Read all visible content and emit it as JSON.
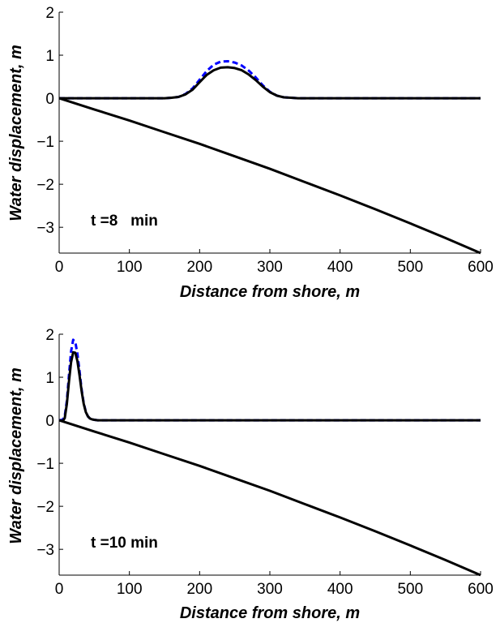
{
  "chart_data": [
    {
      "type": "line",
      "title": "",
      "xlabel": "Distance from shore, m",
      "ylabel": "Water displacement, m",
      "xlim": [
        0,
        600
      ],
      "ylim": [
        -3.6,
        2
      ],
      "xticks": [
        "0",
        "100",
        "200",
        "300",
        "400",
        "500",
        "600"
      ],
      "yticks": [
        "2",
        "1",
        "0",
        "−1",
        "−2",
        "−3"
      ],
      "annotation": "t =8   min",
      "grid": false,
      "legend": "none",
      "series": [
        {
          "color": "#0000ff",
          "style": "dashed",
          "x": [
            0,
            150,
            160,
            170,
            180,
            190,
            200,
            210,
            220,
            230,
            240,
            250,
            260,
            270,
            280,
            290,
            300,
            310,
            320,
            330,
            340,
            600
          ],
          "y": [
            0,
            0,
            0.01,
            0.03,
            0.1,
            0.23,
            0.43,
            0.63,
            0.78,
            0.85,
            0.86,
            0.83,
            0.76,
            0.64,
            0.48,
            0.3,
            0.15,
            0.06,
            0.02,
            0.01,
            0,
            0
          ]
        },
        {
          "color": "#000000",
          "style": "solid",
          "x": [
            0,
            150,
            160,
            170,
            180,
            190,
            200,
            210,
            220,
            230,
            240,
            250,
            260,
            270,
            280,
            290,
            300,
            310,
            320,
            330,
            340,
            600
          ],
          "y": [
            0,
            0,
            0.01,
            0.03,
            0.09,
            0.2,
            0.37,
            0.54,
            0.65,
            0.71,
            0.72,
            0.7,
            0.65,
            0.55,
            0.42,
            0.27,
            0.14,
            0.06,
            0.02,
            0.01,
            0,
            0
          ]
        },
        {
          "color": "#000000",
          "style": "solid",
          "x": [
            0,
            50,
            100,
            150,
            200,
            250,
            300,
            350,
            400,
            450,
            500,
            550,
            600
          ],
          "y": [
            0,
            -0.26,
            -0.52,
            -0.79,
            -1.06,
            -1.35,
            -1.64,
            -1.95,
            -2.26,
            -2.58,
            -2.91,
            -3.25,
            -3.6
          ]
        }
      ]
    },
    {
      "type": "line",
      "title": "",
      "xlabel": "Distance from shore, m",
      "ylabel": "Water displacement, m",
      "xlim": [
        0,
        600
      ],
      "ylim": [
        -3.6,
        2
      ],
      "xticks": [
        "0",
        "100",
        "200",
        "300",
        "400",
        "500",
        "600"
      ],
      "yticks": [
        "2",
        "1",
        "0",
        "−1",
        "−2",
        "−3"
      ],
      "annotation": "t =10 min",
      "grid": false,
      "legend": "none",
      "series": [
        {
          "color": "#0000ff",
          "style": "dashed",
          "x": [
            0,
            5,
            8,
            11,
            14,
            17,
            20,
            23,
            26,
            29,
            32,
            35,
            38,
            41,
            44,
            47,
            50,
            55,
            600
          ],
          "y": [
            0,
            0.01,
            0.1,
            0.45,
            1.05,
            1.6,
            1.87,
            1.82,
            1.55,
            1.15,
            0.72,
            0.4,
            0.2,
            0.09,
            0.04,
            0.02,
            0.01,
            0,
            0
          ]
        },
        {
          "color": "#000000",
          "style": "solid",
          "x": [
            0,
            5,
            8,
            11,
            14,
            17,
            20,
            23,
            26,
            29,
            32,
            35,
            38,
            41,
            44,
            47,
            50,
            55,
            600
          ],
          "y": [
            0,
            -0.02,
            0.05,
            0.38,
            0.9,
            1.35,
            1.58,
            1.57,
            1.38,
            1.05,
            0.68,
            0.38,
            0.19,
            0.09,
            0.04,
            0.02,
            0.01,
            0,
            0
          ]
        },
        {
          "color": "#000000",
          "style": "solid",
          "x": [
            0,
            50,
            100,
            150,
            200,
            250,
            300,
            350,
            400,
            450,
            500,
            550,
            600
          ],
          "y": [
            0,
            -0.26,
            -0.52,
            -0.79,
            -1.06,
            -1.35,
            -1.64,
            -1.95,
            -2.26,
            -2.58,
            -2.91,
            -3.25,
            -3.6
          ]
        }
      ]
    }
  ]
}
